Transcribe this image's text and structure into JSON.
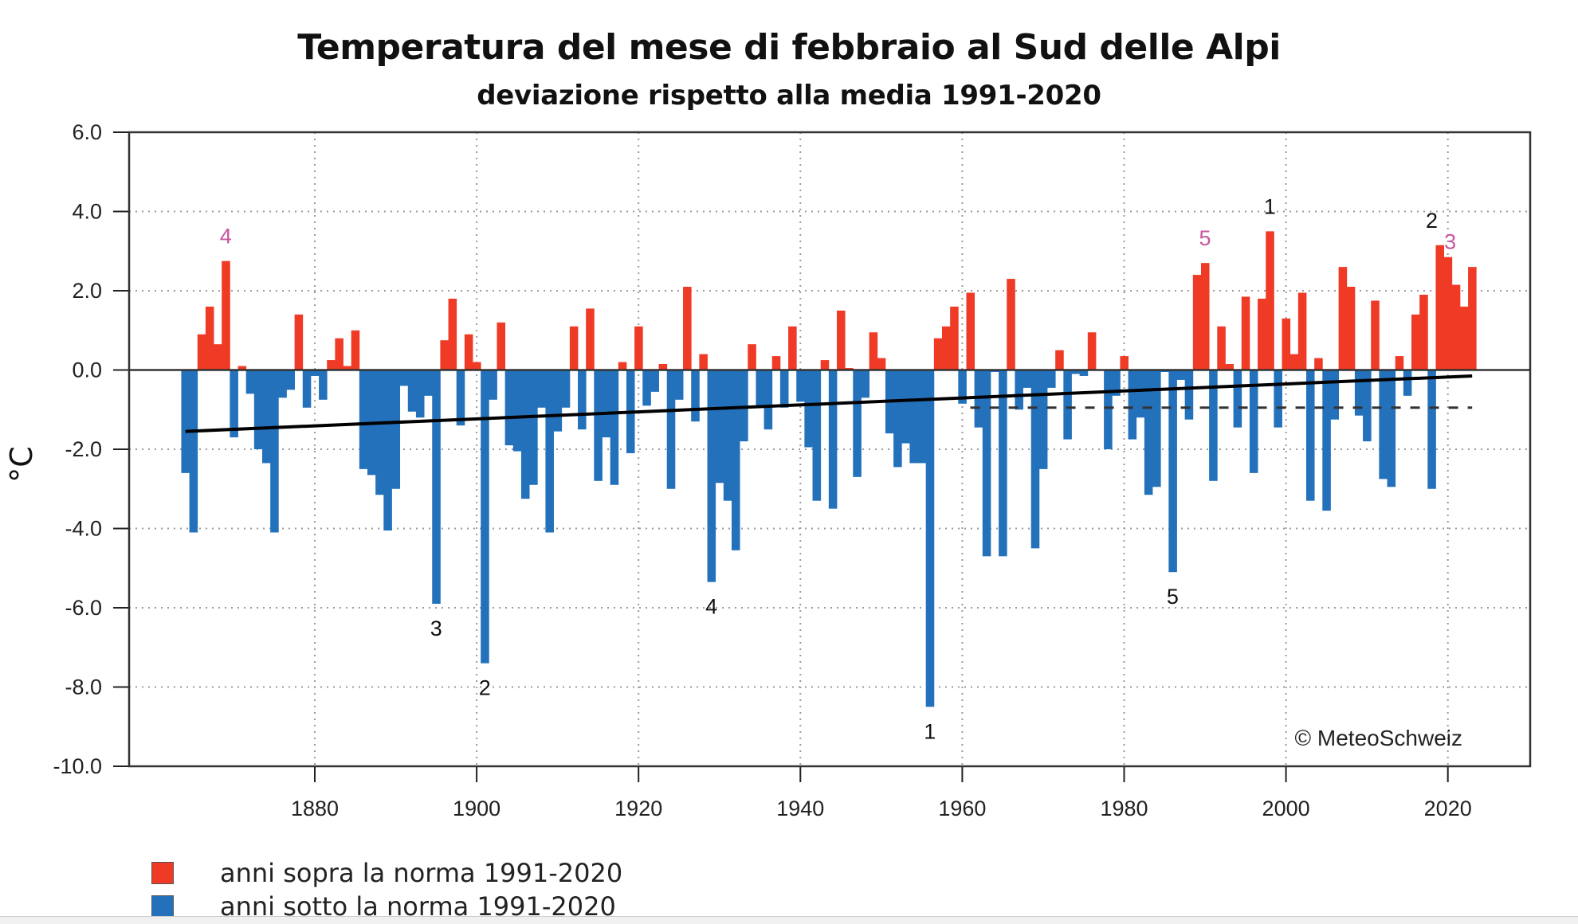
{
  "chart_data": {
    "type": "bar",
    "title": "Temperatura del mese di febbraio al Sud delle Alpi",
    "subtitle": "deviazione rispetto alla media 1991-2020",
    "xlabel": "",
    "ylabel": "°C",
    "ylim": [
      -10,
      6
    ],
    "xlim": [
      1860,
      2027
    ],
    "grid": true,
    "yticks": [
      "6.0",
      "4.0",
      "2.0",
      "0.0",
      "-2.0",
      "-4.0",
      "-6.0",
      "-8.0",
      "-10.0"
    ],
    "ytick_values": [
      6,
      4,
      2,
      0,
      -2,
      -4,
      -6,
      -8,
      -10
    ],
    "xticks": [
      "1880",
      "1900",
      "1920",
      "1940",
      "1960",
      "1980",
      "2000",
      "2020"
    ],
    "xtick_values": [
      1880,
      1900,
      1920,
      1940,
      1960,
      1980,
      2000,
      2020
    ],
    "start_year": 1864,
    "values": [
      -2.6,
      -4.1,
      0.9,
      1.6,
      0.65,
      2.75,
      -1.7,
      0.1,
      -0.6,
      -2.0,
      -2.35,
      -4.1,
      -0.7,
      -0.5,
      1.4,
      -0.95,
      -0.15,
      -0.75,
      0.25,
      0.8,
      0.1,
      1.0,
      -2.5,
      -2.65,
      -3.15,
      -4.05,
      -3.0,
      -0.4,
      -1.05,
      -1.2,
      -0.65,
      -5.9,
      0.75,
      1.8,
      -1.4,
      0.9,
      0.2,
      -7.4,
      -0.75,
      1.2,
      -1.9,
      -2.05,
      -3.25,
      -2.9,
      -0.95,
      -4.1,
      -1.55,
      -0.95,
      1.1,
      -1.5,
      1.55,
      -2.8,
      -1.7,
      -2.9,
      0.2,
      -2.1,
      1.1,
      -0.9,
      -0.55,
      0.15,
      -3.0,
      -0.75,
      2.1,
      -1.3,
      0.4,
      -5.35,
      -2.85,
      -3.3,
      -4.55,
      -1.8,
      0.65,
      -0.9,
      -1.5,
      0.35,
      -0.95,
      1.1,
      -0.8,
      -1.95,
      -3.3,
      0.25,
      -3.5,
      1.5,
      0.05,
      -2.7,
      -0.7,
      0.95,
      0.3,
      -1.6,
      -2.45,
      -1.85,
      -2.35,
      -2.35,
      -8.5,
      0.8,
      1.1,
      1.6,
      -0.85,
      1.95,
      -1.45,
      -4.7,
      -0.05,
      -4.7,
      2.3,
      -1.0,
      -0.45,
      -4.5,
      -2.5,
      -0.45,
      0.5,
      -1.75,
      -0.1,
      -0.15,
      0.95,
      -0.02,
      -2.0,
      -0.65,
      0.35,
      -1.75,
      -1.2,
      -3.15,
      -2.95,
      -0.05,
      -5.1,
      -0.25,
      -1.25,
      2.4,
      2.7,
      -2.8,
      1.1,
      0.15,
      -1.45,
      1.85,
      -2.6,
      1.8,
      3.5,
      -1.45,
      1.3,
      0.4,
      1.95,
      -3.3,
      0.3,
      -3.55,
      -1.25,
      2.6,
      2.1,
      -1.15,
      -1.8,
      1.75,
      -2.75,
      -2.95,
      0.35,
      -0.65,
      1.4,
      1.9,
      -3.0,
      3.15,
      2.85,
      2.15,
      1.6,
      2.6
    ],
    "positive_color": "#ef3a25",
    "negative_color": "#2471bb",
    "trend_line": {
      "label": "linear trend",
      "from": [
        1864,
        -1.55
      ],
      "to": [
        2023,
        -0.15
      ]
    },
    "reference_line": {
      "label": "dashed reference",
      "from": [
        1961,
        -0.95
      ],
      "to": [
        2023,
        -0.95
      ]
    },
    "rank_annotations": {
      "warmest": [
        {
          "rank": "1",
          "year": 1998,
          "value": 3.5
        },
        {
          "rank": "2",
          "year": 2019,
          "value": 3.15
        },
        {
          "rank": "3",
          "year": 2020,
          "value": 2.85
        },
        {
          "rank": "4",
          "year": 1869,
          "value": 2.75
        },
        {
          "rank": "5",
          "year": 1990,
          "value": 2.7
        }
      ],
      "coldest": [
        {
          "rank": "1",
          "year": 1956,
          "value": -8.5
        },
        {
          "rank": "2",
          "year": 1901,
          "value": -7.4
        },
        {
          "rank": "3",
          "year": 1895,
          "value": -5.9
        },
        {
          "rank": "4",
          "year": 1929,
          "value": -5.35
        },
        {
          "rank": "5",
          "year": 1986,
          "value": -5.1
        }
      ]
    },
    "legend": [
      {
        "label": "anni sopra la norma 1991-2020",
        "color": "#ef3a25"
      },
      {
        "label": "anni sotto la norma 1991-2020",
        "color": "#2471bb"
      }
    ],
    "legend_position": "bottom-left",
    "copyright": "© MeteoSchweiz",
    "annotation_colors": {
      "warm_rank_other": "#c8559e",
      "warm_rank_black": "#111111",
      "cold_rank": "#111111"
    }
  }
}
